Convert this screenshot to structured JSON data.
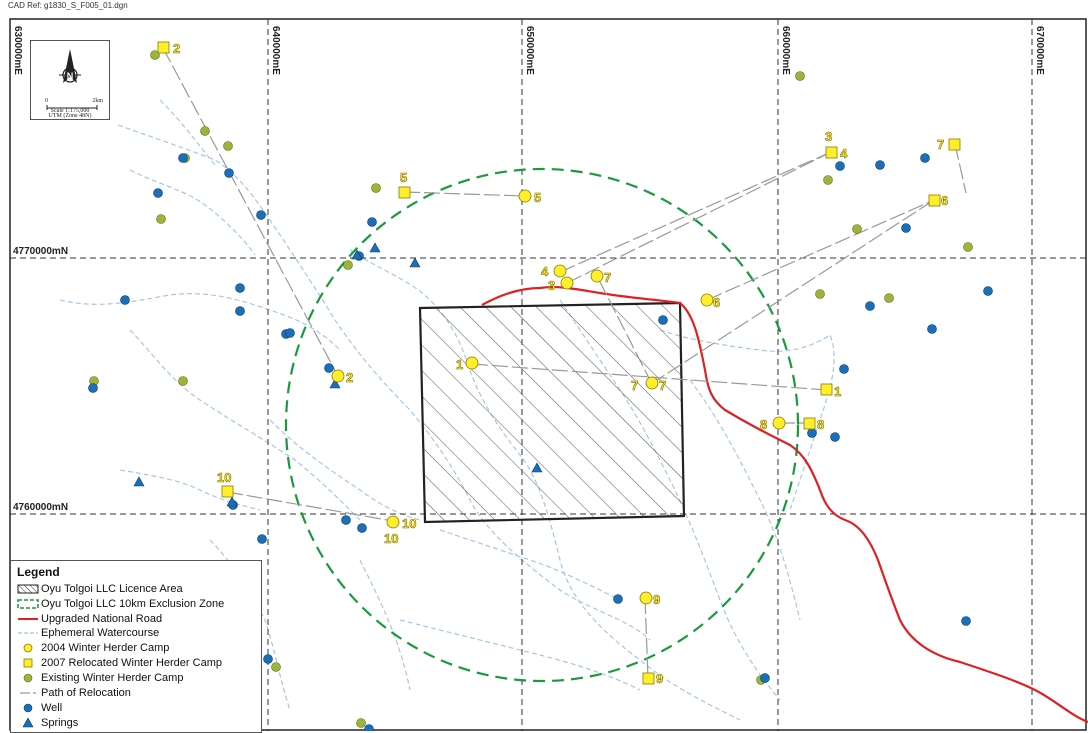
{
  "cad_ref": "CAD Ref: g1830_S_F005_01.dgn",
  "grid": {
    "eastings": [
      "630000mE",
      "640000mE",
      "650000mE",
      "660000mE",
      "670000mE"
    ],
    "northings": [
      "4770000mN",
      "4760000mN"
    ]
  },
  "north_arrow": {
    "letter": "N",
    "scale_start": "0",
    "scale_end": "2km",
    "scale_text": "Scale 1:175,000",
    "projection": "UTM (Zone 48N)"
  },
  "legend": {
    "title": "Legend",
    "items": [
      {
        "label": "Oyu Tolgoi LLC Licence Area",
        "symbol": "hatch-box"
      },
      {
        "label": "Oyu Tolgoi LLC 10km Exclusion Zone",
        "symbol": "green-dashed-box"
      },
      {
        "label": "Upgraded National Road",
        "symbol": "red-line"
      },
      {
        "label": "Ephemeral Watercourse",
        "symbol": "blue-dashed-line"
      },
      {
        "label": "2004 Winter Herder Camp",
        "symbol": "yellow-circle"
      },
      {
        "label": "2007 Relocated Winter Herder Camp",
        "symbol": "yellow-square"
      },
      {
        "label": "Existing Winter Herder Camp",
        "symbol": "green-circle"
      },
      {
        "label": "Path of Relocation",
        "symbol": "grey-dash"
      },
      {
        "label": "Well",
        "symbol": "blue-circle"
      },
      {
        "label": "Springs",
        "symbol": "blue-triangle"
      }
    ]
  },
  "camp_labels": [
    "1",
    "2",
    "3",
    "4",
    "5",
    "6",
    "7",
    "8",
    "9",
    "10"
  ],
  "colors": {
    "licence_border": "#222222",
    "exclusion_zone": "#1a9a3c",
    "road": "#e02020",
    "watercourse": "#9ec3e6",
    "camp_2004": "#ffef2a",
    "camp_2007": "#ffef2a",
    "existing_camp": "#9bb53a",
    "well": "#1a6fb8",
    "spring": "#1a6fb8",
    "relocation_path": "#999999",
    "grid": "#333333"
  }
}
